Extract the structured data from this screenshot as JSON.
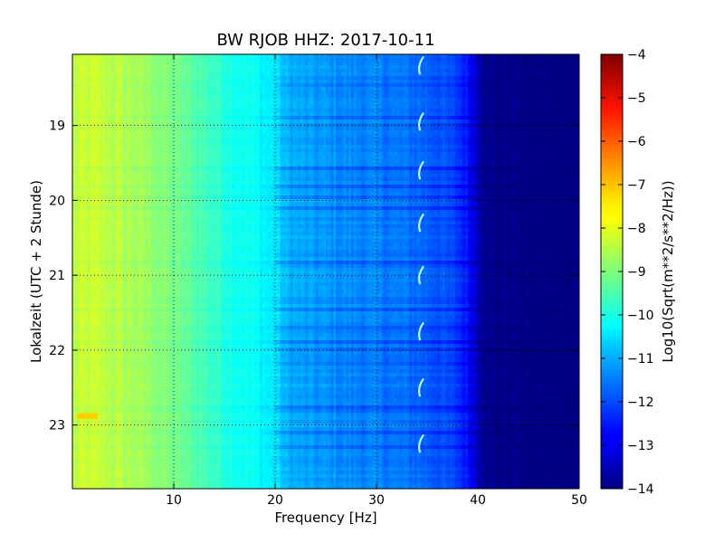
{
  "chart_data": {
    "type": "heatmap",
    "title": "BW RJOB HHZ: 2017-10-11",
    "xlabel": "Frequency [Hz]",
    "ylabel": "Lokalzeit (UTC + 2 Stunde)",
    "xlim": [
      0,
      50
    ],
    "ylim": [
      18.05,
      23.85
    ],
    "y_inverted": true,
    "x_ticks": [
      10,
      20,
      30,
      40,
      50
    ],
    "y_ticks": [
      19,
      20,
      21,
      22,
      23
    ],
    "grid": true,
    "colormap": "jet",
    "colorbar": {
      "label": "Log10(Sqrt(m**2/s**2/Hz))",
      "range": [
        -14,
        -4
      ],
      "ticks": [
        -4,
        -5,
        -6,
        -7,
        -8,
        -9,
        -10,
        -11,
        -12,
        -13,
        -14
      ]
    },
    "frequency_profile": {
      "frequency_hz": [
        0,
        2,
        5,
        8,
        10,
        12,
        14,
        16,
        18,
        20,
        21,
        23,
        25,
        27,
        30,
        32,
        34,
        36,
        38,
        39,
        40,
        41,
        45,
        50
      ],
      "log10_amplitude": [
        -8.4,
        -8.3,
        -8.5,
        -8.8,
        -9.1,
        -9.4,
        -9.7,
        -10.0,
        -10.2,
        -10.5,
        -11.0,
        -11.2,
        -11.3,
        -11.4,
        -11.5,
        -11.6,
        -11.7,
        -11.9,
        -12.2,
        -12.6,
        -13.3,
        -13.9,
        -14.0,
        -14.0
      ]
    },
    "features": [
      {
        "label": "tonal line near 34.5 Hz",
        "frequency_hz": 34.5,
        "times": [
          18.2,
          18.95,
          19.6,
          20.3,
          21.0,
          21.75,
          22.5,
          23.25
        ]
      },
      {
        "label": "low-frequency burst",
        "frequency_range_hz": [
          0.5,
          2.5
        ],
        "time": 22.88
      }
    ]
  }
}
